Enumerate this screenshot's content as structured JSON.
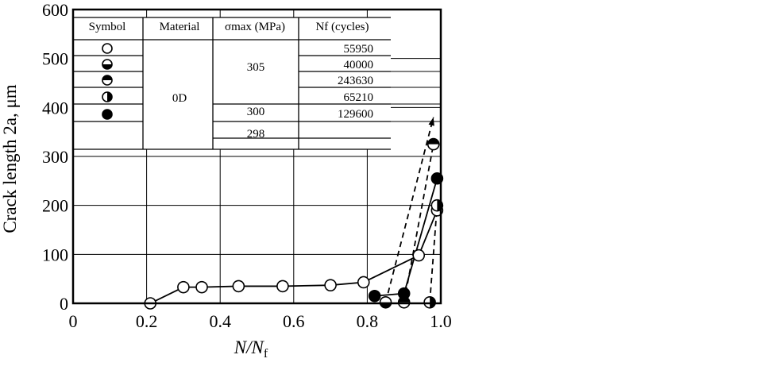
{
  "chart_data": {
    "type": "line",
    "xlabel": "N/N",
    "xlabel_sub": "f",
    "ylabel": "Crack length 2a, μm",
    "xlim": [
      0,
      1.0
    ],
    "ylim": [
      0,
      600
    ],
    "x_ticks": [
      "0",
      "0.2",
      "0.4",
      "0.6",
      "0.8",
      "1.0"
    ],
    "y_ticks": [
      "0",
      "100",
      "200",
      "300",
      "400",
      "500",
      "600"
    ],
    "grid": true,
    "legend_table": {
      "headers": [
        "Symbol",
        "Material",
        "σmax (MPa)",
        "Nf (cycles)"
      ],
      "material": "0D",
      "stress_groups": [
        {
          "value": "305",
          "rows": 3
        },
        {
          "value": "300",
          "rows": 1
        },
        {
          "value": "298",
          "rows": 1
        }
      ],
      "rows": [
        {
          "symbol": "open-circle",
          "nf": "55950"
        },
        {
          "symbol": "bottom-half-filled-circle",
          "nf": "40000"
        },
        {
          "symbol": "top-half-filled-circle",
          "nf": "243630"
        },
        {
          "symbol": "right-half-filled-circle",
          "nf": "65210"
        },
        {
          "symbol": "filled-circle",
          "nf": "129600"
        }
      ]
    },
    "series": [
      {
        "symbol": "open-circle",
        "line": "solid",
        "points": [
          [
            0.21,
            0
          ],
          [
            0.3,
            33
          ],
          [
            0.35,
            33
          ],
          [
            0.45,
            35
          ],
          [
            0.57,
            35
          ],
          [
            0.7,
            37
          ],
          [
            0.79,
            43
          ],
          [
            0.94,
            98
          ],
          [
            0.99,
            190
          ]
        ]
      },
      {
        "symbol": "bottom-half-filled-circle",
        "line": "dashed",
        "points": [
          [
            0.85,
            2
          ],
          [
            0.98,
            380
          ]
        ]
      },
      {
        "symbol": "top-half-filled-circle",
        "line": "dashed",
        "points": [
          [
            0.9,
            2
          ],
          [
            0.98,
            325
          ]
        ]
      },
      {
        "symbol": "right-half-filled-circle",
        "line": "dashed",
        "points": [
          [
            0.97,
            2
          ],
          [
            0.99,
            200
          ]
        ]
      },
      {
        "symbol": "filled-circle",
        "line": "solid",
        "points": [
          [
            0.82,
            15
          ],
          [
            0.9,
            20
          ],
          [
            0.99,
            255
          ]
        ]
      }
    ]
  }
}
